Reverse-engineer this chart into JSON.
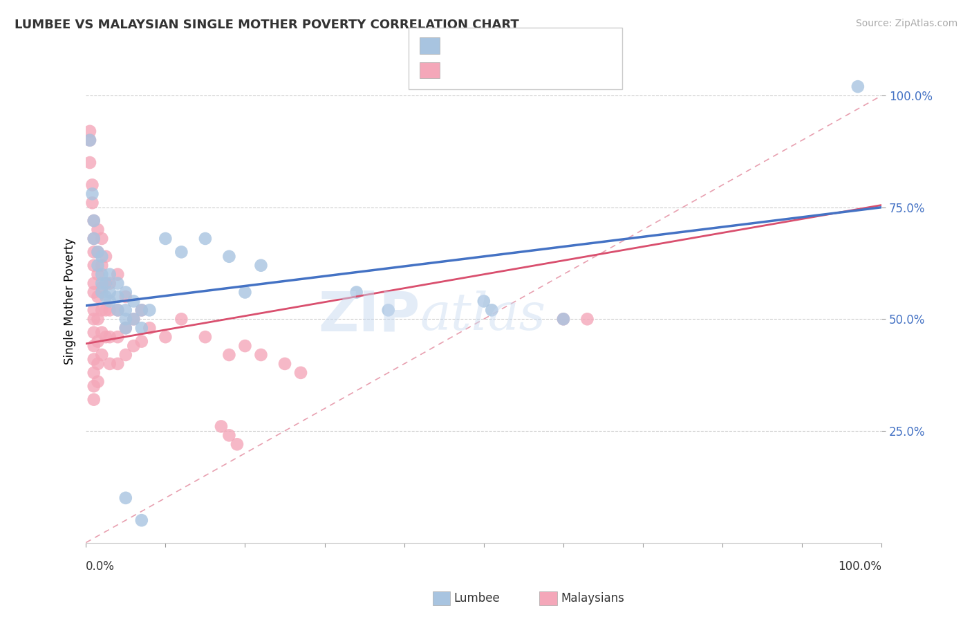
{
  "title": "LUMBEE VS MALAYSIAN SINGLE MOTHER POVERTY CORRELATION CHART",
  "source": "Source: ZipAtlas.com",
  "ylabel": "Single Mother Poverty",
  "xlim": [
    0.0,
    1.0
  ],
  "ylim": [
    0.0,
    1.08
  ],
  "yticks": [
    0.25,
    0.5,
    0.75,
    1.0
  ],
  "ytick_labels": [
    "25.0%",
    "50.0%",
    "75.0%",
    "100.0%"
  ],
  "lumbee_color": "#a8c4e0",
  "lumbee_line_color": "#4472c4",
  "malaysian_color": "#f4a7b9",
  "malaysian_line_color": "#d94f6e",
  "diagonal_color": "#f4a7b9",
  "watermark_zip": "ZIP",
  "watermark_atlas": "atlas",
  "background_color": "#ffffff",
  "lumbee_scatter": [
    [
      0.005,
      0.9
    ],
    [
      0.008,
      0.78
    ],
    [
      0.01,
      0.72
    ],
    [
      0.01,
      0.68
    ],
    [
      0.015,
      0.65
    ],
    [
      0.015,
      0.62
    ],
    [
      0.02,
      0.64
    ],
    [
      0.02,
      0.6
    ],
    [
      0.02,
      0.58
    ],
    [
      0.02,
      0.56
    ],
    [
      0.025,
      0.58
    ],
    [
      0.025,
      0.55
    ],
    [
      0.03,
      0.6
    ],
    [
      0.03,
      0.56
    ],
    [
      0.03,
      0.54
    ],
    [
      0.04,
      0.58
    ],
    [
      0.04,
      0.55
    ],
    [
      0.04,
      0.52
    ],
    [
      0.05,
      0.56
    ],
    [
      0.05,
      0.52
    ],
    [
      0.05,
      0.5
    ],
    [
      0.05,
      0.48
    ],
    [
      0.06,
      0.54
    ],
    [
      0.06,
      0.5
    ],
    [
      0.07,
      0.52
    ],
    [
      0.07,
      0.48
    ],
    [
      0.08,
      0.52
    ],
    [
      0.1,
      0.68
    ],
    [
      0.12,
      0.65
    ],
    [
      0.15,
      0.68
    ],
    [
      0.18,
      0.64
    ],
    [
      0.2,
      0.56
    ],
    [
      0.22,
      0.62
    ],
    [
      0.34,
      0.56
    ],
    [
      0.38,
      0.52
    ],
    [
      0.5,
      0.54
    ],
    [
      0.51,
      0.52
    ],
    [
      0.6,
      0.5
    ],
    [
      0.97,
      1.02
    ],
    [
      0.05,
      0.1
    ],
    [
      0.07,
      0.05
    ]
  ],
  "malaysian_scatter": [
    [
      0.005,
      0.92
    ],
    [
      0.005,
      0.9
    ],
    [
      0.005,
      0.85
    ],
    [
      0.008,
      0.8
    ],
    [
      0.008,
      0.76
    ],
    [
      0.01,
      0.72
    ],
    [
      0.01,
      0.68
    ],
    [
      0.01,
      0.65
    ],
    [
      0.01,
      0.62
    ],
    [
      0.01,
      0.58
    ],
    [
      0.01,
      0.56
    ],
    [
      0.01,
      0.52
    ],
    [
      0.01,
      0.5
    ],
    [
      0.01,
      0.47
    ],
    [
      0.01,
      0.44
    ],
    [
      0.01,
      0.41
    ],
    [
      0.01,
      0.38
    ],
    [
      0.01,
      0.35
    ],
    [
      0.01,
      0.32
    ],
    [
      0.015,
      0.7
    ],
    [
      0.015,
      0.65
    ],
    [
      0.015,
      0.6
    ],
    [
      0.015,
      0.55
    ],
    [
      0.015,
      0.5
    ],
    [
      0.015,
      0.45
    ],
    [
      0.015,
      0.4
    ],
    [
      0.015,
      0.36
    ],
    [
      0.02,
      0.68
    ],
    [
      0.02,
      0.62
    ],
    [
      0.02,
      0.57
    ],
    [
      0.02,
      0.52
    ],
    [
      0.02,
      0.47
    ],
    [
      0.02,
      0.42
    ],
    [
      0.025,
      0.64
    ],
    [
      0.025,
      0.58
    ],
    [
      0.025,
      0.52
    ],
    [
      0.025,
      0.46
    ],
    [
      0.03,
      0.58
    ],
    [
      0.03,
      0.52
    ],
    [
      0.03,
      0.46
    ],
    [
      0.03,
      0.4
    ],
    [
      0.04,
      0.6
    ],
    [
      0.04,
      0.52
    ],
    [
      0.04,
      0.46
    ],
    [
      0.04,
      0.4
    ],
    [
      0.05,
      0.55
    ],
    [
      0.05,
      0.48
    ],
    [
      0.05,
      0.42
    ],
    [
      0.06,
      0.5
    ],
    [
      0.06,
      0.44
    ],
    [
      0.07,
      0.52
    ],
    [
      0.07,
      0.45
    ],
    [
      0.08,
      0.48
    ],
    [
      0.1,
      0.46
    ],
    [
      0.12,
      0.5
    ],
    [
      0.15,
      0.46
    ],
    [
      0.18,
      0.42
    ],
    [
      0.2,
      0.44
    ],
    [
      0.22,
      0.42
    ],
    [
      0.25,
      0.4
    ],
    [
      0.27,
      0.38
    ],
    [
      0.6,
      0.5
    ],
    [
      0.63,
      0.5
    ],
    [
      0.17,
      0.26
    ],
    [
      0.18,
      0.24
    ],
    [
      0.19,
      0.22
    ]
  ]
}
